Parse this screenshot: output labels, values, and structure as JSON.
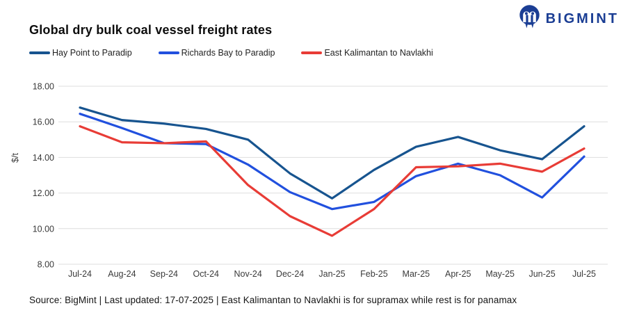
{
  "brand": {
    "name": "BIGMINT",
    "color": "#1b3e94",
    "icon": "bigmint-mascot"
  },
  "chart_data": {
    "type": "line",
    "title": "Global dry bulk coal vessel freight rates",
    "xlabel": "",
    "ylabel": "$/t",
    "ylim": [
      8,
      18
    ],
    "grid": true,
    "legend_position": "top-left",
    "categories": [
      "Jul-24",
      "Aug-24",
      "Sep-24",
      "Oct-24",
      "Nov-24",
      "Dec-24",
      "Jan-25",
      "Feb-25",
      "Mar-25",
      "Apr-25",
      "May-25",
      "Jun-25",
      "Jul-25"
    ],
    "y_ticks": [
      {
        "value": 18,
        "label": "18.00"
      },
      {
        "value": 16,
        "label": "16.00"
      },
      {
        "value": 14,
        "label": "14.00"
      },
      {
        "value": 12,
        "label": "12.00"
      },
      {
        "value": 10,
        "label": "10.00"
      },
      {
        "value": 8,
        "label": "8.00"
      }
    ],
    "series": [
      {
        "name": "Hay Point to Paradip",
        "color": "#17548f",
        "values": [
          16.8,
          16.1,
          15.9,
          15.6,
          15.0,
          13.1,
          11.7,
          13.3,
          14.6,
          15.15,
          14.4,
          13.9,
          15.75
        ]
      },
      {
        "name": "Richards Bay to Paradip",
        "color": "#2150de",
        "values": [
          16.45,
          15.65,
          14.8,
          14.75,
          13.6,
          12.05,
          11.1,
          11.5,
          12.95,
          13.65,
          13.0,
          11.75,
          14.05
        ]
      },
      {
        "name": "East Kalimantan to Navlakhi",
        "color": "#e83c36",
        "values": [
          15.75,
          14.85,
          14.8,
          14.9,
          12.45,
          10.7,
          9.6,
          11.1,
          13.45,
          13.5,
          13.65,
          13.2,
          14.5
        ]
      }
    ]
  },
  "footer": {
    "text": "Source: BigMint | Last updated: 17-07-2025 | East Kalimantan to Navlakhi is for supramax while rest is for panamax"
  },
  "style": {
    "gridline_color": "#dedede",
    "tick_label_color": "#3a3a3a"
  }
}
